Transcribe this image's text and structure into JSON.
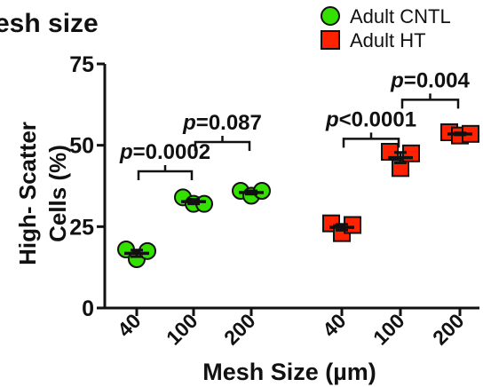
{
  "chart_data": {
    "type": "scatter",
    "title": "esh size",
    "xlabel": "Mesh Size (µm)",
    "ylabel_lines": [
      "High- Scatter",
      "Cells (%)"
    ],
    "ylim": [
      0,
      75
    ],
    "yticks": [
      0,
      25,
      50,
      75
    ],
    "groups": [
      {
        "label": "40",
        "series": "Adult CNTL"
      },
      {
        "label": "100",
        "series": "Adult CNTL"
      },
      {
        "label": "200",
        "series": "Adult CNTL"
      },
      {
        "label": "40",
        "series": "Adult HT"
      },
      {
        "label": "100",
        "series": "Adult HT"
      },
      {
        "label": "200",
        "series": "Adult HT"
      }
    ],
    "series": [
      {
        "name": "Adult CNTL",
        "marker": "circle",
        "color": "#33e000",
        "points": [
          {
            "group": 0,
            "values": [
              18,
              15,
              17.5
            ],
            "mean": 16.8,
            "sem": 1.0
          },
          {
            "group": 1,
            "values": [
              34,
              32,
              32
            ],
            "mean": 32.7,
            "sem": 0.7
          },
          {
            "group": 2,
            "values": [
              36,
              34.5,
              36
            ],
            "mean": 35.5,
            "sem": 0.5
          }
        ]
      },
      {
        "name": "Adult HT",
        "marker": "square",
        "color": "#ff2200",
        "points": [
          {
            "group": 3,
            "values": [
              26,
              23,
              25.5
            ],
            "mean": 24.8,
            "sem": 0.9
          },
          {
            "group": 4,
            "values": [
              48,
              43,
              47.5
            ],
            "mean": 46.2,
            "sem": 1.6
          },
          {
            "group": 5,
            "values": [
              54,
              53,
              53.5
            ],
            "mean": 53.5,
            "sem": 0.3
          }
        ]
      }
    ],
    "comparisons": [
      {
        "from": 0,
        "to": 1,
        "y": 42,
        "p_prefix": "p",
        "p_value": "=0.0002"
      },
      {
        "from": 1,
        "to": 2,
        "y": 51,
        "p_prefix": "p",
        "p_value": "=0.087"
      },
      {
        "from": 3,
        "to": 4,
        "y": 52,
        "p_prefix": "p",
        "p_value": "<0.0001"
      },
      {
        "from": 4,
        "to": 5,
        "y": 64,
        "p_prefix": "p",
        "p_value": "=0.004"
      }
    ],
    "legend": {
      "placement": "top-right",
      "entries": [
        {
          "label": "Adult CNTL",
          "marker": "circle",
          "color": "#33e000"
        },
        {
          "label": "Adult HT",
          "marker": "square",
          "color": "#ff2200"
        }
      ]
    },
    "grid": false
  }
}
